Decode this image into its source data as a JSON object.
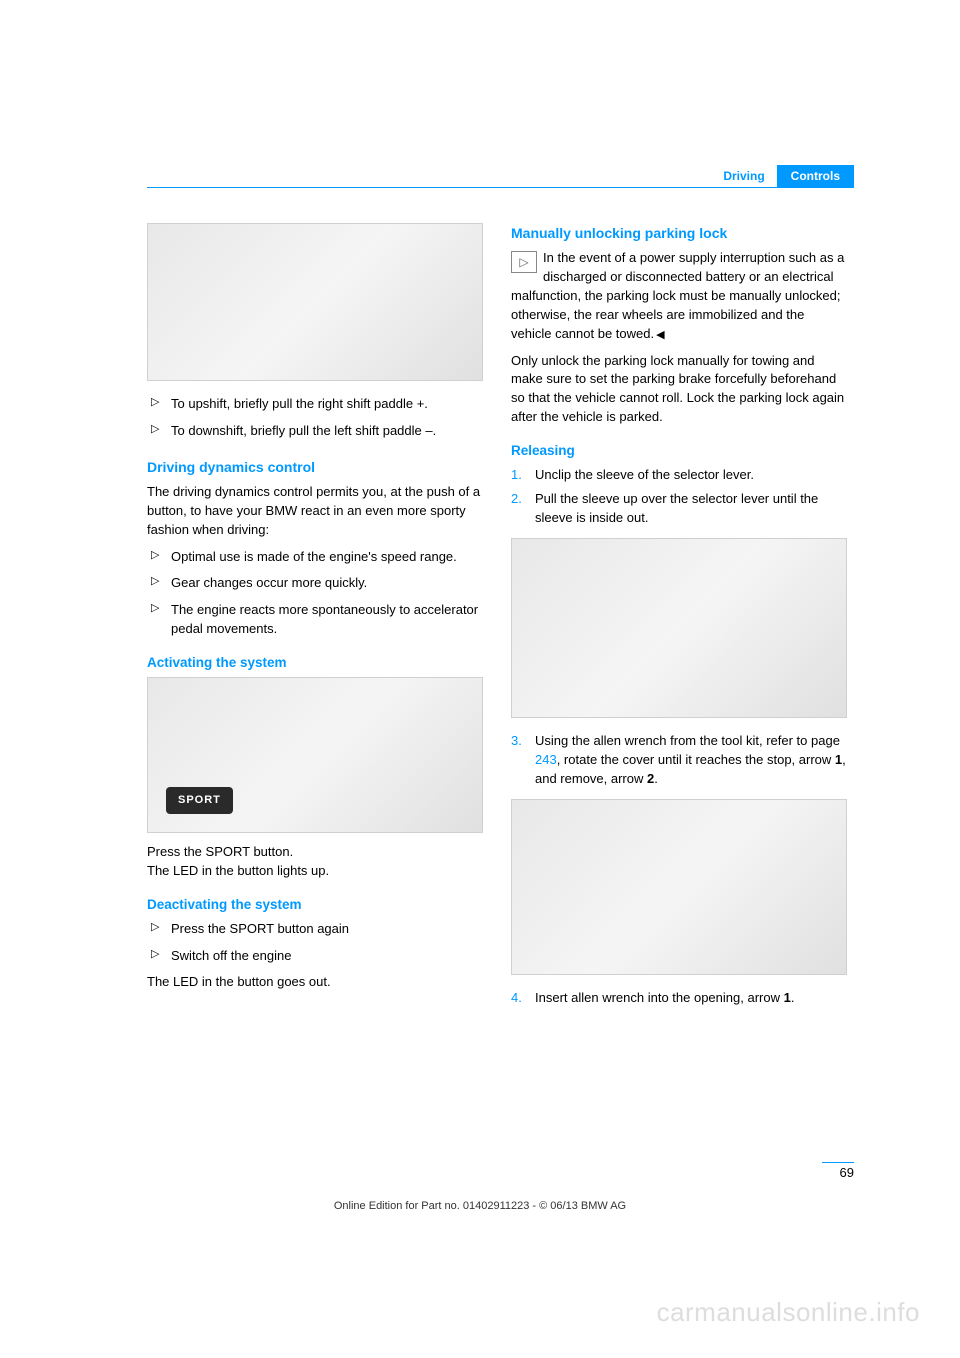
{
  "header": {
    "section": "Driving",
    "chapter": "Controls"
  },
  "left": {
    "b1": "To upshift, briefly pull the right shift paddle +.",
    "b2": "To downshift, briefly pull the left shift paddle –.",
    "h1": "Driving dynamics control",
    "p1": "The driving dynamics control permits you, at the push of a button, to have your BMW react in an even more sporty fashion when driving:",
    "b3": "Optimal use is made of the engine's speed range.",
    "b4": "Gear changes occur more quickly.",
    "b5": "The engine reacts more spontaneously to accelerator pedal movements.",
    "h2": "Activating the system",
    "sport": "SPORT",
    "p2a": "Press the SPORT button.",
    "p2b": "The LED in the button lights up.",
    "h3": "Deactivating the system",
    "b6": "Press the SPORT button again",
    "b7": "Switch off the engine",
    "p3": "The LED in the button goes out."
  },
  "right": {
    "h1": "Manually unlocking parking lock",
    "p1": "In the event of a power supply interruption such as a discharged or disconnected battery or an electrical malfunction, the parking lock must be manually unlocked; otherwise, the rear wheels are immobilized and the vehicle cannot be towed.",
    "p2": "Only unlock the parking lock manually for towing and make sure to set the parking brake forcefully beforehand so that the vehicle cannot roll. Lock the parking lock again after the vehicle is parked.",
    "h2": "Releasing",
    "n1": "Unclip the sleeve of the selector lever.",
    "n2": "Pull the sleeve up over the selector lever until the sleeve is inside out.",
    "n3a": "Using the allen wrench from the tool kit, refer to page ",
    "n3link": "243",
    "n3b": ", rotate the cover until it reaches the stop, arrow ",
    "n3c": ", and remove, arrow ",
    "bold1": "1",
    "bold2": "2",
    "n4a": "Insert allen wrench into the opening, arrow ",
    "n4b": "."
  },
  "pagenum": "69",
  "footer": "Online Edition for Part no. 01402911223 - © 06/13 BMW AG",
  "watermark": "carmanualsonline.info"
}
